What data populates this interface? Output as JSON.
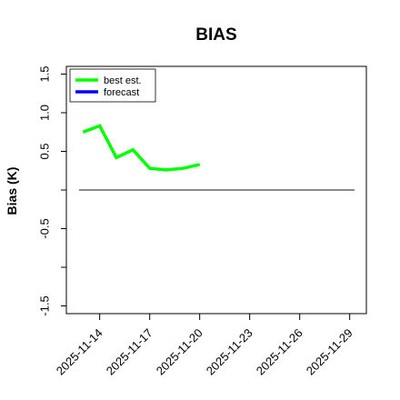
{
  "chart_data": {
    "type": "line",
    "title": "BIAS",
    "ylabel": "Bias (K)",
    "xlabel": "",
    "x_dates": [
      "2025-11-13",
      "2025-11-14",
      "2025-11-15",
      "2025-11-16",
      "2025-11-17",
      "2025-11-18",
      "2025-11-19",
      "2025-11-20"
    ],
    "ylim": [
      -1.6,
      1.6
    ],
    "y_ticks": [
      -1.5,
      -1.0,
      -0.5,
      0.0,
      0.5,
      1.0,
      1.5
    ],
    "y_tick_labels": [
      "-1.5",
      "",
      "-0.5",
      "",
      "0.5",
      "1.0",
      "1.5"
    ],
    "xlim": [
      "2025-11-12",
      "2025-11-30"
    ],
    "x_ticks": [
      "2025-11-14",
      "2025-11-17",
      "2025-11-20",
      "2025-11-23",
      "2025-11-26",
      "2025-11-29"
    ],
    "x_tick_labels": [
      "2025-11-14",
      "2025-11-17",
      "2025-11-20",
      "2025-11-23",
      "2025-11-26",
      "2025-11-29"
    ],
    "highlight_tick": "2025-11-20",
    "highlight_color": "#2e8b2e",
    "reference_line": 0.0,
    "series": [
      {
        "name": "best est.",
        "color": "#00ff00",
        "values": [
          0.75,
          0.83,
          0.42,
          0.52,
          0.28,
          0.26,
          0.28,
          0.33
        ]
      },
      {
        "name": "forecast",
        "color": "#0000ff",
        "values": []
      }
    ],
    "legend_position": "top-left",
    "grid": false
  }
}
